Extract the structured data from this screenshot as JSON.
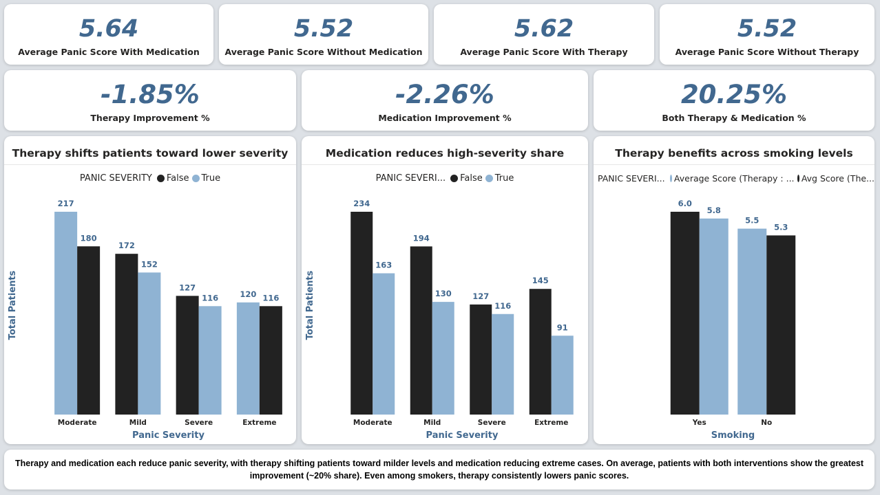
{
  "kpis_top": [
    {
      "value": "5.64",
      "label": "Average Panic Score With Medication"
    },
    {
      "value": "5.52",
      "label": "Average Panic Score Without Medication"
    },
    {
      "value": "5.62",
      "label": "Average Panic Score With Therapy"
    },
    {
      "value": "5.52",
      "label": "Average Panic Score Without Therapy"
    }
  ],
  "kpis_mid": [
    {
      "value": "-1.85%",
      "label": "Therapy Improvement %"
    },
    {
      "value": "-2.26%",
      "label": "Medication Improvement %"
    },
    {
      "value": "20.25%",
      "label": "Both Therapy & Medication %"
    }
  ],
  "colors": {
    "dark": "#222222",
    "light": "#8fb3d3",
    "accent": "#41688f"
  },
  "chart_data": [
    {
      "type": "bar",
      "title": "Therapy shifts patients toward lower severity",
      "legend_title": "PANIC SEVERITY",
      "legend_position": "top",
      "xlabel": "Panic Severity",
      "ylabel": "Total Patients",
      "categories": [
        "Moderate",
        "Mild",
        "Severe",
        "Extreme"
      ],
      "series": [
        {
          "name": "False",
          "color": "#222222",
          "values": [
            180,
            172,
            127,
            116
          ]
        },
        {
          "name": "True",
          "color": "#8fb3d3",
          "values": [
            217,
            152,
            116,
            120
          ]
        }
      ],
      "bar_order": [
        [
          "True",
          "False"
        ],
        [
          "False",
          "True"
        ],
        [
          "False",
          "True"
        ],
        [
          "True",
          "False"
        ]
      ],
      "ylim": [
        0,
        217
      ],
      "grid": false
    },
    {
      "type": "bar",
      "title": "Medication reduces high-severity share",
      "legend_title": "PANIC SEVERI...",
      "legend_position": "top",
      "xlabel": "Panic Severity",
      "ylabel": "Total Patients",
      "categories": [
        "Moderate",
        "Mild",
        "Severe",
        "Extreme"
      ],
      "series": [
        {
          "name": "False",
          "color": "#222222",
          "values": [
            234,
            194,
            127,
            145
          ]
        },
        {
          "name": "True",
          "color": "#8fb3d3",
          "values": [
            163,
            130,
            116,
            91
          ]
        }
      ],
      "ylim": [
        0,
        234
      ],
      "grid": false
    },
    {
      "type": "bar",
      "title": "Therapy benefits across smoking levels",
      "legend_title": "PANIC SEVERI...",
      "legend_position": "top",
      "xlabel": "Smoking",
      "ylabel": "",
      "categories": [
        "Yes",
        "No"
      ],
      "series": [
        {
          "name": "Average Score (Therapy : ...",
          "color": "#8fb3d3",
          "values": [
            5.8,
            5.5
          ]
        },
        {
          "name": "Avg Score (The...",
          "color": "#222222",
          "values": [
            6.0,
            5.3
          ]
        }
      ],
      "bar_order": [
        [
          "Avg Score (The...",
          "Average Score (Therapy : ..."
        ],
        [
          "Average Score (Therapy : ...",
          "Avg Score (The..."
        ]
      ],
      "ylim": [
        0,
        6.0
      ],
      "grid": false
    }
  ],
  "summary": "Therapy and medication each reduce panic severity, with therapy shifting patients toward milder levels and medication reducing extreme cases. On average, patients with both interventions show the greatest improvement (~20% share). Even among smokers, therapy consistently lowers panic scores."
}
